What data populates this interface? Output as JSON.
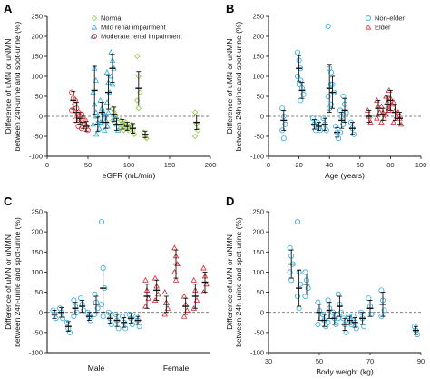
{
  "colors": {
    "normal": "#8dc63f",
    "mild": "#29abe2",
    "moderate": "#d9272e",
    "nonelder": "#29abe2",
    "elder": "#d9272e",
    "errorbar": "#111111",
    "axis": "#111111",
    "zero_line": "#555555"
  },
  "chart_data": [
    {
      "panel": "A",
      "type": "scatter",
      "xlabel": "eGFR (mL/min)",
      "ylabel_lines": [
        "Difference of uMN or uNMN",
        "between 24h-urine and spot-urine (%)"
      ],
      "xlim": [
        0,
        200
      ],
      "ylim": [
        -100,
        250
      ],
      "xticks": [
        0,
        50,
        100,
        150,
        200
      ],
      "yticks": [
        -100,
        -50,
        0,
        50,
        100,
        150,
        200,
        250
      ],
      "grid": false,
      "zero_line": "dashed",
      "legend": "top-right",
      "legend_entries": [
        "Normal",
        "Mild renal impairment",
        "Moderate renal impairment"
      ],
      "series": [
        {
          "name": "Normal",
          "key": "normal",
          "marker": "diamond-open",
          "groups": [
            {
              "x": 82,
              "mean": 5,
              "sd": 18,
              "points": [
                20,
                10,
                0,
                -10
              ]
            },
            {
              "x": 92,
              "mean": -20,
              "sd": 12,
              "points": [
                -10,
                -25,
                -35,
                -30,
                -15
              ]
            },
            {
              "x": 98,
              "mean": -25,
              "sd": 10,
              "points": [
                -15,
                -30,
                -35,
                -20
              ]
            },
            {
              "x": 105,
              "mean": -30,
              "sd": 12,
              "points": [
                -20,
                -35,
                -45,
                -25
              ]
            },
            {
              "x": 112,
              "mean": 70,
              "sd": 42,
              "points": [
                150,
                100,
                60,
                40,
                20
              ]
            },
            {
              "x": 120,
              "mean": -45,
              "sd": 8,
              "points": [
                -40,
                -50,
                -55
              ]
            },
            {
              "x": 183,
              "mean": -15,
              "sd": 18,
              "points": [
                10,
                -20,
                -35,
                -50
              ]
            }
          ]
        },
        {
          "name": "Mild renal impairment",
          "key": "mild",
          "marker": "triangle-open",
          "groups": [
            {
              "x": 58,
              "mean": 65,
              "sd": 60,
              "points": [
                200,
                120,
                90,
                60,
                30,
                10,
                -20
              ]
            },
            {
              "x": 62,
              "mean": -20,
              "sd": 18,
              "points": [
                0,
                -15,
                -30,
                -45
              ]
            },
            {
              "x": 67,
              "mean": 10,
              "sd": 25,
              "points": [
                40,
                20,
                10,
                -15
              ]
            },
            {
              "x": 72,
              "mean": -15,
              "sd": 15,
              "points": [
                0,
                -10,
                -25,
                -35
              ]
            },
            {
              "x": 75,
              "mean": 60,
              "sd": 42,
              "points": [
                110,
                85,
                60,
                35,
                10
              ]
            },
            {
              "x": 80,
              "mean": 120,
              "sd": 35,
              "points": [
                160,
                140,
                120,
                100,
                80
              ]
            },
            {
              "x": 85,
              "mean": -20,
              "sd": 15,
              "points": [
                -5,
                -20,
                -35
              ]
            }
          ]
        },
        {
          "name": "Moderate renal impairment",
          "key": "moderate",
          "marker": "circle-open",
          "groups": [
            {
              "x": 32,
              "mean": 40,
              "sd": 22,
              "points": [
                60,
                45,
                30,
                15
              ]
            },
            {
              "x": 36,
              "mean": 10,
              "sd": 25,
              "points": [
                40,
                20,
                5,
                -10
              ]
            },
            {
              "x": 40,
              "mean": -5,
              "sd": 15,
              "points": [
                10,
                0,
                -10,
                -25
              ]
            },
            {
              "x": 44,
              "mean": -15,
              "sd": 15,
              "points": [
                5,
                -10,
                -20,
                -30
              ]
            },
            {
              "x": 48,
              "mean": -25,
              "sd": 12,
              "points": [
                -10,
                -25,
                -35
              ]
            }
          ]
        }
      ]
    },
    {
      "panel": "B",
      "type": "scatter",
      "xlabel": "Age (years)",
      "ylabel_lines": [
        "Difference of uMN or uNMN",
        "between 24h-urine and spot-urine (%)"
      ],
      "xlim": [
        0,
        100
      ],
      "ylim": [
        -100,
        250
      ],
      "xticks": [
        0,
        20,
        40,
        60,
        80,
        100
      ],
      "yticks": [
        -100,
        -50,
        0,
        50,
        100,
        150,
        200,
        250
      ],
      "grid": false,
      "zero_line": "dashed",
      "legend": "top-right",
      "legend_entries": [
        "Non-elder",
        "Elder"
      ],
      "series": [
        {
          "name": "Non-elder",
          "key": "nonelder",
          "marker": "circle-open",
          "groups": [
            {
              "x": 10,
              "mean": -10,
              "sd": 25,
              "points": [
                20,
                0,
                -20,
                -35,
                -55
              ]
            },
            {
              "x": 20,
              "mean": 120,
              "sd": 32,
              "points": [
                160,
                140,
                120,
                100,
                80
              ]
            },
            {
              "x": 22,
              "mean": 65,
              "sd": 20,
              "points": [
                90,
                70,
                55,
                40
              ]
            },
            {
              "x": 30,
              "mean": -20,
              "sd": 12,
              "points": [
                -5,
                -20,
                -35
              ]
            },
            {
              "x": 33,
              "mean": -25,
              "sd": 10,
              "points": [
                -15,
                -30,
                -35
              ]
            },
            {
              "x": 37,
              "mean": -20,
              "sd": 15,
              "points": [
                -5,
                -20,
                -35
              ]
            },
            {
              "x": 40,
              "mean": 70,
              "sd": 60,
              "points": [
                225,
                120,
                80,
                50,
                20
              ]
            },
            {
              "x": 42,
              "mean": 60,
              "sd": 40,
              "points": [
                110,
                80,
                60,
                30
              ]
            },
            {
              "x": 45,
              "mean": -40,
              "sd": 12,
              "points": [
                -25,
                -40,
                -55
              ]
            },
            {
              "x": 48,
              "mean": -10,
              "sd": 20,
              "points": [
                15,
                0,
                -20,
                -40
              ]
            },
            {
              "x": 50,
              "mean": 15,
              "sd": 30,
              "points": [
                50,
                30,
                10,
                -20
              ]
            },
            {
              "x": 55,
              "mean": -30,
              "sd": 15,
              "points": [
                -15,
                -30,
                -45
              ]
            }
          ]
        },
        {
          "name": "Elder",
          "key": "elder",
          "marker": "triangle-open",
          "groups": [
            {
              "x": 66,
              "mean": 0,
              "sd": 15,
              "points": [
                15,
                0,
                -15
              ]
            },
            {
              "x": 72,
              "mean": 20,
              "sd": 20,
              "points": [
                40,
                25,
                10,
                -5
              ]
            },
            {
              "x": 75,
              "mean": 5,
              "sd": 15,
              "points": [
                25,
                10,
                -5,
                -15
              ]
            },
            {
              "x": 78,
              "mean": 30,
              "sd": 20,
              "points": [
                50,
                35,
                20,
                5
              ]
            },
            {
              "x": 80,
              "mean": 40,
              "sd": 25,
              "points": [
                65,
                45,
                30,
                15
              ]
            },
            {
              "x": 83,
              "mean": 10,
              "sd": 20,
              "points": [
                35,
                15,
                0,
                -15
              ]
            },
            {
              "x": 86,
              "mean": -5,
              "sd": 15,
              "points": [
                10,
                -5,
                -20
              ]
            }
          ]
        }
      ]
    },
    {
      "panel": "C",
      "type": "scatter",
      "xlabel": "",
      "xcategories": [
        "Male",
        "Female"
      ],
      "ylabel_lines": [
        "Difference of uMN or uNMN",
        "between 24h-urine and spot-urine (%)"
      ],
      "ylim": [
        -100,
        250
      ],
      "yticks": [
        -100,
        -50,
        0,
        50,
        100,
        150,
        200,
        250
      ],
      "grid": false,
      "zero_line": "dashed",
      "series": [
        {
          "name": "",
          "key": "male",
          "color_key": "mild",
          "marker": "circle-open",
          "category": "Male",
          "groups": [
            {
              "mean": -5,
              "sd": 10,
              "points": [
                5,
                -5,
                -15
              ]
            },
            {
              "mean": 0,
              "sd": 12,
              "points": [
                10,
                0,
                -15
              ]
            },
            {
              "mean": -35,
              "sd": 12,
              "points": [
                -25,
                -40,
                -50
              ]
            },
            {
              "mean": 10,
              "sd": 15,
              "points": [
                30,
                15,
                0,
                -10
              ]
            },
            {
              "mean": 15,
              "sd": 15,
              "points": [
                35,
                20,
                5
              ]
            },
            {
              "mean": -10,
              "sd": 10,
              "points": [
                0,
                -10,
                -20
              ]
            },
            {
              "mean": 20,
              "sd": 20,
              "points": [
                45,
                25,
                10,
                -5
              ]
            },
            {
              "mean": 60,
              "sd": 60,
              "points": [
                225,
                110,
                60,
                20,
                -10
              ]
            },
            {
              "mean": -15,
              "sd": 12,
              "points": [
                0,
                -15,
                -30
              ]
            },
            {
              "mean": -20,
              "sd": 15,
              "points": [
                -5,
                -20,
                -40
              ]
            },
            {
              "mean": -25,
              "sd": 12,
              "points": [
                -10,
                -25,
                -40
              ]
            },
            {
              "mean": -15,
              "sd": 12,
              "points": [
                -5,
                -15,
                -30
              ]
            },
            {
              "mean": -20,
              "sd": 10,
              "points": [
                -10,
                -20,
                -35
              ]
            }
          ]
        },
        {
          "name": "",
          "key": "female",
          "color_key": "moderate",
          "marker": "triangle-open",
          "category": "Female",
          "groups": [
            {
              "mean": 40,
              "sd": 30,
              "points": [
                80,
                55,
                35,
                15
              ]
            },
            {
              "mean": 55,
              "sd": 25,
              "points": [
                85,
                65,
                45,
                30
              ]
            },
            {
              "mean": 20,
              "sd": 20,
              "points": [
                50,
                25,
                10,
                -5
              ]
            },
            {
              "mean": 120,
              "sd": 35,
              "points": [
                160,
                140,
                120,
                100,
                80
              ]
            },
            {
              "mean": 15,
              "sd": 20,
              "points": [
                40,
                20,
                5,
                -10
              ]
            },
            {
              "mean": 40,
              "sd": 30,
              "points": [
                80,
                55,
                30,
                10
              ]
            },
            {
              "mean": 75,
              "sd": 25,
              "points": [
                110,
                90,
                70,
                50
              ]
            }
          ]
        }
      ]
    },
    {
      "panel": "D",
      "type": "scatter",
      "xlabel": "Body weight (kg)",
      "ylabel_lines": [
        "Difference of uMN or uNMN",
        "between 24h-urine and spot-urine (%)"
      ],
      "xlim": [
        30,
        90
      ],
      "ylim": [
        -100,
        250
      ],
      "xticks": [
        30,
        50,
        70,
        90
      ],
      "yticks": [
        -100,
        -50,
        0,
        50,
        100,
        150,
        200,
        250
      ],
      "grid": false,
      "zero_line": "dashed",
      "series": [
        {
          "name": "",
          "key": "weight",
          "color_key": "mild",
          "marker": "circle-open",
          "groups": [
            {
              "x": 39,
              "mean": 120,
              "sd": 35,
              "points": [
                160,
                140,
                120,
                100,
                80
              ]
            },
            {
              "x": 42,
              "mean": 60,
              "sd": 45,
              "points": [
                225,
                100,
                70,
                40,
                10
              ]
            },
            {
              "x": 45,
              "mean": 70,
              "sd": 25,
              "points": [
                100,
                80,
                60,
                40
              ]
            },
            {
              "x": 50,
              "mean": 0,
              "sd": 20,
              "points": [
                25,
                5,
                -15,
                -30
              ]
            },
            {
              "x": 52,
              "mean": -20,
              "sd": 15,
              "points": [
                -5,
                -20,
                -35
              ]
            },
            {
              "x": 54,
              "mean": 5,
              "sd": 20,
              "points": [
                30,
                10,
                -10,
                -25
              ]
            },
            {
              "x": 56,
              "mean": -15,
              "sd": 15,
              "points": [
                0,
                -15,
                -30
              ]
            },
            {
              "x": 58,
              "mean": 15,
              "sd": 25,
              "points": [
                45,
                20,
                0,
                -15
              ]
            },
            {
              "x": 60,
              "mean": -30,
              "sd": 15,
              "points": [
                -15,
                -30,
                -50
              ]
            },
            {
              "x": 62,
              "mean": -20,
              "sd": 10,
              "points": [
                -10,
                -20,
                -30
              ]
            },
            {
              "x": 64,
              "mean": -25,
              "sd": 12,
              "points": [
                -10,
                -25,
                -40
              ]
            },
            {
              "x": 67,
              "mean": -15,
              "sd": 15,
              "points": [
                0,
                -15,
                -35
              ]
            },
            {
              "x": 70,
              "mean": 10,
              "sd": 20,
              "points": [
                35,
                15,
                -5
              ]
            },
            {
              "x": 75,
              "mean": 20,
              "sd": 30,
              "points": [
                55,
                30,
                5,
                -10
              ]
            },
            {
              "x": 88,
              "mean": -45,
              "sd": 10,
              "points": [
                -35,
                -45,
                -55
              ]
            }
          ]
        }
      ]
    }
  ]
}
